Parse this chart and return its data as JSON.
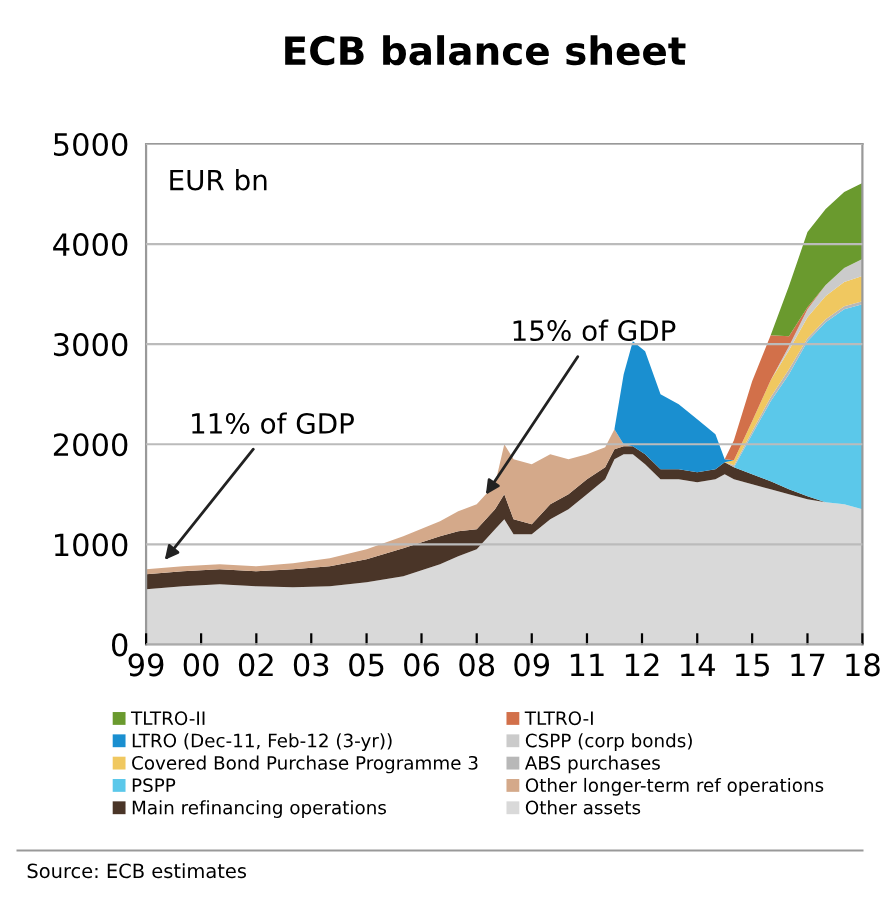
{
  "chart_data": {
    "type": "area",
    "stacked": true,
    "title": "ECB balance sheet",
    "x": [
      "1999-01",
      "2000-01",
      "2001-01",
      "2002-01",
      "2003-01",
      "2004-01",
      "2005-01",
      "2006-01",
      "2007-01",
      "2007-07",
      "2008-01",
      "2008-07",
      "2008-10",
      "2009-01",
      "2009-07",
      "2010-01",
      "2010-07",
      "2011-01",
      "2011-07",
      "2011-10",
      "2012-01",
      "2012-04",
      "2012-08",
      "2013-01",
      "2013-07",
      "2014-01",
      "2014-07",
      "2014-10",
      "2015-01",
      "2015-07",
      "2016-01",
      "2016-07",
      "2017-01",
      "2017-07",
      "2018-01",
      "2018-07"
    ],
    "series": [
      {
        "name": "Other assets",
        "color": "#d9d9d9",
        "values": [
          550,
          580,
          600,
          580,
          570,
          580,
          620,
          680,
          800,
          880,
          950,
          1150,
          1250,
          1100,
          1100,
          1250,
          1350,
          1500,
          1650,
          1850,
          1900,
          1900,
          1800,
          1650,
          1650,
          1620,
          1650,
          1700,
          1650,
          1600,
          1550,
          1500,
          1450,
          1420,
          1400,
          1350
        ]
      },
      {
        "name": "Main refinancing operations",
        "color": "#4a3528",
        "values": [
          150,
          150,
          150,
          150,
          180,
          200,
          230,
          280,
          280,
          250,
          200,
          200,
          250,
          150,
          100,
          150,
          150,
          150,
          120,
          100,
          80,
          80,
          100,
          100,
          100,
          100,
          100,
          120,
          120,
          100,
          80,
          50,
          30,
          0,
          null,
          null
        ]
      },
      {
        "name": "Other longer-term ref operations",
        "color": "#d4a98a",
        "values": [
          50,
          50,
          50,
          50,
          60,
          80,
          100,
          120,
          150,
          200,
          250,
          250,
          500,
          600,
          600,
          500,
          350,
          250,
          200,
          200,
          20,
          0,
          null,
          null,
          null,
          null,
          null,
          null,
          null,
          null,
          null,
          null,
          null,
          null,
          null,
          null
        ]
      },
      {
        "name": "PSPP",
        "color": "#5bc8ea",
        "values": [
          null,
          null,
          null,
          null,
          null,
          null,
          null,
          null,
          null,
          null,
          null,
          null,
          null,
          null,
          null,
          null,
          null,
          null,
          null,
          null,
          null,
          null,
          null,
          null,
          null,
          null,
          null,
          null,
          0,
          400,
          800,
          1150,
          1550,
          1800,
          1950,
          2050
        ]
      },
      {
        "name": "ABS purchases",
        "color": "#b8b8b8",
        "values": [
          null,
          null,
          null,
          null,
          null,
          null,
          null,
          null,
          null,
          null,
          null,
          null,
          null,
          null,
          null,
          null,
          null,
          null,
          null,
          null,
          null,
          null,
          null,
          null,
          null,
          null,
          null,
          0,
          20,
          30,
          40,
          50,
          30,
          30,
          30,
          30
        ]
      },
      {
        "name": "Covered Bond Purchase Programme 3",
        "color": "#f0c860",
        "values": [
          null,
          null,
          null,
          null,
          null,
          null,
          null,
          null,
          null,
          null,
          null,
          null,
          null,
          null,
          null,
          null,
          null,
          null,
          null,
          null,
          null,
          null,
          null,
          null,
          null,
          null,
          null,
          0,
          50,
          100,
          170,
          190,
          210,
          230,
          240,
          250
        ]
      },
      {
        "name": "CSPP (corp bonds)",
        "color": "#cbcbcb",
        "values": [
          null,
          null,
          null,
          null,
          null,
          null,
          null,
          null,
          null,
          null,
          null,
          null,
          null,
          null,
          null,
          null,
          null,
          null,
          null,
          null,
          null,
          null,
          null,
          null,
          null,
          null,
          null,
          null,
          null,
          null,
          0,
          40,
          80,
          110,
          140,
          170
        ]
      },
      {
        "name": "LTRO (Dec-11, Feb-12 (3-yr))",
        "color": "#1a8fd0",
        "values": [
          null,
          null,
          null,
          null,
          null,
          null,
          null,
          null,
          null,
          null,
          null,
          null,
          null,
          null,
          null,
          null,
          null,
          null,
          null,
          0,
          700,
          1050,
          1030,
          750,
          650,
          530,
          350,
          30,
          0,
          null,
          null,
          null,
          null,
          null,
          null,
          null
        ]
      },
      {
        "name": "TLTRO-I",
        "color": "#d2704a",
        "values": [
          null,
          null,
          null,
          null,
          null,
          null,
          null,
          null,
          null,
          null,
          null,
          null,
          null,
          null,
          null,
          null,
          null,
          null,
          null,
          null,
          null,
          null,
          null,
          null,
          null,
          null,
          null,
          0,
          200,
          400,
          450,
          100,
          20,
          0,
          null,
          null
        ]
      },
      {
        "name": "TLTRO-II",
        "color": "#6a9a2e",
        "values": [
          null,
          null,
          null,
          null,
          null,
          null,
          null,
          null,
          null,
          null,
          null,
          null,
          null,
          null,
          null,
          null,
          null,
          null,
          null,
          null,
          null,
          null,
          null,
          null,
          null,
          null,
          null,
          null,
          null,
          null,
          0,
          500,
          750,
          760,
          760,
          760
        ]
      }
    ],
    "xlim": [
      "1999-01",
      "2018-07"
    ],
    "xticks": [
      {
        "value": "1999-01",
        "label": "99"
      },
      {
        "value": "2000-07",
        "label": "00"
      },
      {
        "value": "2002-01",
        "label": "02"
      },
      {
        "value": "2003-07",
        "label": "03"
      },
      {
        "value": "2005-01",
        "label": "05"
      },
      {
        "value": "2006-07",
        "label": "06"
      },
      {
        "value": "2008-01",
        "label": "08"
      },
      {
        "value": "2009-07",
        "label": "09"
      },
      {
        "value": "2011-01",
        "label": "11"
      },
      {
        "value": "2012-07",
        "label": "12"
      },
      {
        "value": "2014-01",
        "label": "14"
      },
      {
        "value": "2015-07",
        "label": "15"
      },
      {
        "value": "2017-01",
        "label": "17"
      },
      {
        "value": "2018-07",
        "label": "18"
      }
    ],
    "ylim": [
      0,
      5000
    ],
    "yticks": [
      0,
      1000,
      2000,
      3000,
      4000,
      5000
    ],
    "ylabel": "EUR bn",
    "grid": "y",
    "legend": "bottom",
    "annotations": [
      {
        "text": "11% of GDP",
        "x": "1999-06",
        "y": 800
      },
      {
        "text": "15% of GDP",
        "x": "2008-03",
        "y": 1450
      },
      "Source: ECB estimates"
    ]
  }
}
